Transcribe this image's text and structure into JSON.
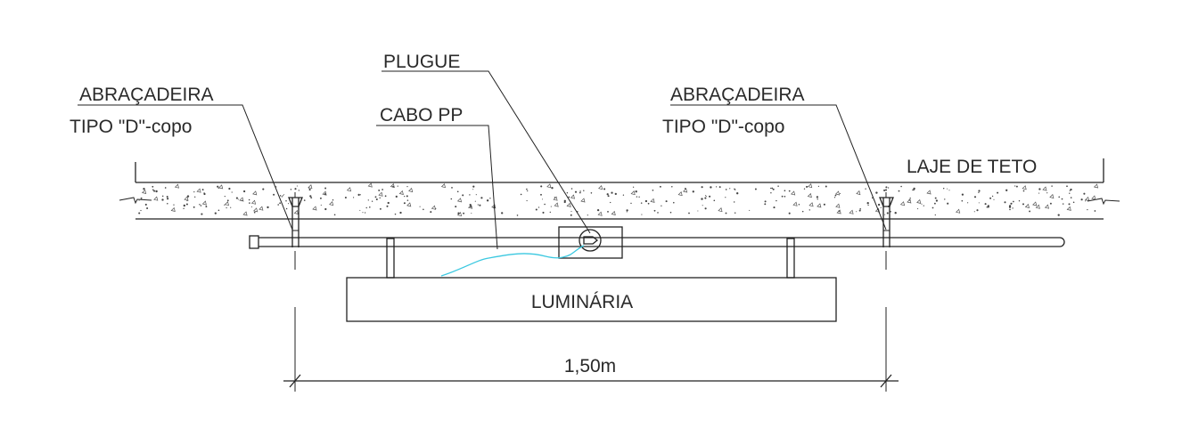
{
  "labels": {
    "clamp_left_title": "ABRAÇADEIRA",
    "clamp_left_type": "TIPO \"D\"-copo",
    "plug": "PLUGUE",
    "cable": "CABO PP",
    "clamp_right_title": "ABRAÇADEIRA",
    "clamp_right_type": "TIPO \"D\"-copo",
    "slab": "LAJE DE TETO",
    "luminaire": "LUMINÁRIA",
    "dimension": "1,50m"
  },
  "colors": {
    "line": "#222222",
    "text": "#2a2a2a",
    "cable": "#3ac8e0",
    "background": "#ffffff"
  }
}
